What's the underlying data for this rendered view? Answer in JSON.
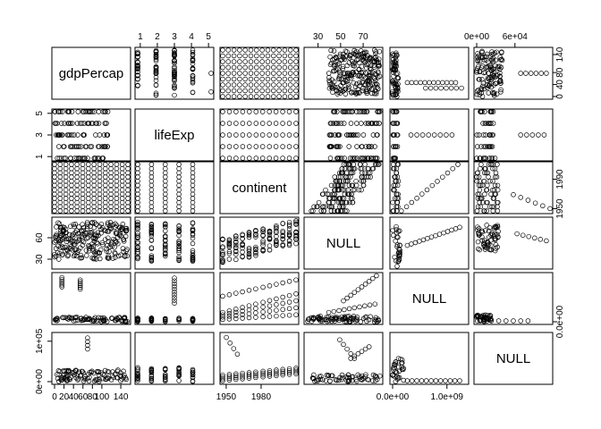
{
  "chart_data": {
    "type": "scatter",
    "layout": "scatterplot-matrix",
    "title": "",
    "variables": [
      "gdpPercap",
      "lifeExp",
      "continent",
      "NULL",
      "NULL",
      "NULL"
    ],
    "axis_ticks": {
      "top": [
        {
          "col": 1,
          "ticks": [
            "1",
            "2",
            "3",
            "4",
            "5"
          ],
          "range": [
            0.85,
            5.15
          ]
        },
        {
          "col": 3,
          "ticks": [
            "30",
            "50",
            "70"
          ],
          "range": [
            20,
            85
          ]
        },
        {
          "col": 5,
          "ticks": [
            "0e+00",
            "6e+04"
          ],
          "range": [
            0,
            115000
          ]
        }
      ],
      "right": [
        {
          "row": 0,
          "ticks": [
            "0",
            "40",
            "80",
            "140"
          ],
          "range": [
            0,
            155
          ]
        },
        {
          "row": 2,
          "ticks": [
            "1950",
            "1990"
          ],
          "range": [
            1947,
            2010
          ]
        },
        {
          "row": 4,
          "ticks": [
            "0.0e+00"
          ],
          "range": [
            0,
            1350000000.0
          ]
        }
      ],
      "left": [
        {
          "row": 1,
          "ticks": [
            "1",
            "3",
            "5"
          ],
          "range": [
            0.85,
            5.15
          ]
        },
        {
          "row": 3,
          "ticks": [
            "30",
            "60"
          ],
          "range": [
            20,
            85
          ]
        },
        {
          "row": 5,
          "ticks": [
            "0e+00",
            "1e+05"
          ],
          "range": [
            0,
            115000
          ]
        }
      ],
      "bottom": [
        {
          "col": 0,
          "ticks": [
            "0",
            "20",
            "40",
            "60",
            "80",
            "100",
            "140"
          ],
          "range": [
            0,
            155
          ]
        },
        {
          "col": 2,
          "ticks": [
            "1950",
            "1980"
          ],
          "range": [
            1947,
            2010
          ]
        },
        {
          "col": 4,
          "ticks": [
            "0.0e+00",
            "1.0e+09"
          ],
          "range": [
            0,
            1350000000.0
          ]
        }
      ]
    },
    "grid": false,
    "legend": "none"
  }
}
